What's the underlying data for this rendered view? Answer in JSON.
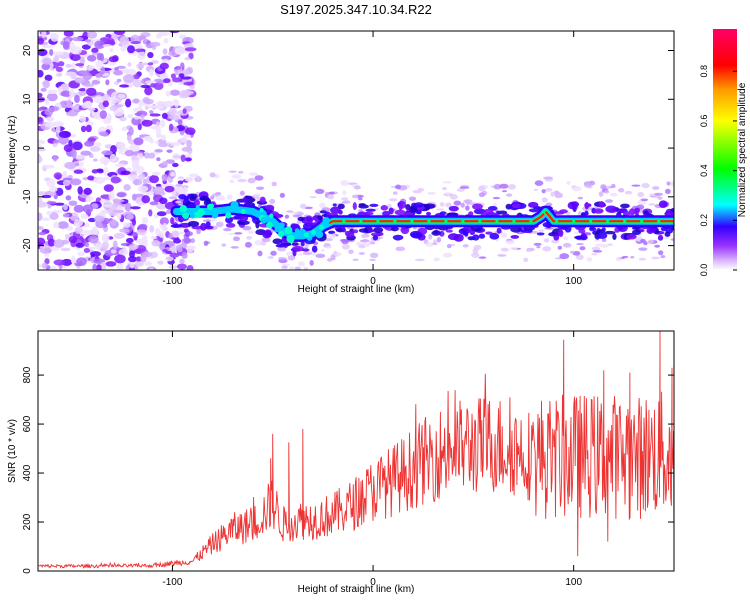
{
  "chart_data": [
    {
      "type": "heatmap",
      "title": "S197.2025.347.10.34.R22",
      "xlabel": "Height of straight line (km)",
      "ylabel": "Frequency (Hz)",
      "xlim": [
        -167,
        150
      ],
      "ylim": [
        -25,
        24
      ],
      "xticks": [
        -100,
        0,
        100
      ],
      "yticks": [
        -20,
        -10,
        0,
        10,
        20
      ],
      "colorbar": {
        "label": "Normalized spectral amplitude",
        "range": [
          0,
          0.97
        ],
        "ticks": [
          "0.0",
          "0.2",
          "0.4",
          "0.6",
          "0.8"
        ],
        "colors": [
          "#ffffff",
          "#d9b3ff",
          "#9933ff",
          "#3300ff",
          "#00ffff",
          "#00ff00",
          "#ffff00",
          "#ff9900",
          "#ff0000",
          "#ff0066"
        ]
      },
      "features": {
        "ridge": {
          "x": [
            -98,
            -90,
            -80,
            -70,
            -60,
            -55,
            -50,
            -45,
            -40,
            -35,
            -30,
            -25,
            -20,
            -15,
            -10,
            0,
            10,
            20,
            40,
            60,
            80,
            84,
            86,
            88,
            90,
            100,
            120,
            140,
            148
          ],
          "y": [
            -13,
            -13,
            -13,
            -12.5,
            -13,
            -14,
            -15,
            -17,
            -18,
            -18,
            -17.5,
            -16,
            -15,
            -15,
            -15,
            -15,
            -15,
            -15,
            -15,
            -15,
            -15,
            -14,
            -13,
            -14,
            -15,
            -15,
            -15,
            -15,
            -15
          ]
        },
        "noise_region_x": [
          -167,
          -90
        ]
      }
    },
    {
      "type": "line",
      "xlabel": "Height of straight line (km)",
      "ylabel": "SNR (10 * v/v)",
      "xlim": [
        -167,
        150
      ],
      "ylim": [
        0,
        980
      ],
      "xticks": [
        -100,
        0,
        100
      ],
      "yticks": [
        0,
        200,
        400,
        600,
        800
      ],
      "series": [
        {
          "name": "SNR",
          "color": "#ee3333",
          "envelope_x": [
            -167,
            -140,
            -110,
            -90,
            -80,
            -70,
            -60,
            -55,
            -50,
            -45,
            -40,
            -35,
            -30,
            -20,
            -10,
            0,
            10,
            20,
            30,
            40,
            50,
            60,
            70,
            80,
            90,
            100,
            110,
            120,
            130,
            140,
            150
          ],
          "envelope_y": [
            20,
            20,
            22,
            40,
            110,
            170,
            190,
            230,
            280,
            190,
            200,
            210,
            210,
            230,
            270,
            330,
            370,
            420,
            470,
            500,
            510,
            520,
            500,
            470,
            460,
            470,
            470,
            470,
            460,
            480,
            470
          ],
          "spikes": [
            {
              "x": -51,
              "y": 460
            },
            {
              "x": -50,
              "y": 560
            },
            {
              "x": -42,
              "y": 525
            },
            {
              "x": -35,
              "y": 580
            },
            {
              "x": 95,
              "y": 945
            },
            {
              "x": 143,
              "y": 980
            },
            {
              "x": 128,
              "y": 810
            },
            {
              "x": 115,
              "y": 820
            },
            {
              "x": 149,
              "y": 830
            },
            {
              "x": 102,
              "y": 60
            },
            {
              "x": 117,
              "y": 120
            },
            {
              "x": 150,
              "y": 100
            }
          ]
        }
      ]
    }
  ]
}
